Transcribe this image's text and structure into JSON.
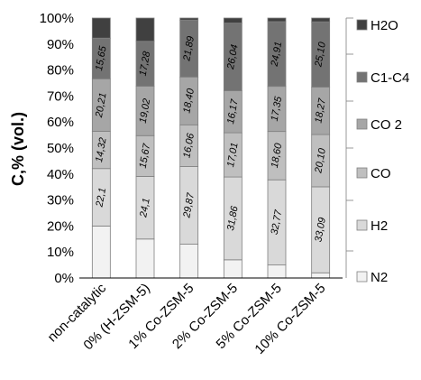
{
  "chart_data": {
    "type": "bar",
    "stacked": true,
    "ylabel": "C,% (vol.)",
    "ylim": [
      0,
      100
    ],
    "y_ticks": [
      "0%",
      "10%",
      "20%",
      "30%",
      "40%",
      "50%",
      "60%",
      "70%",
      "80%",
      "90%",
      "100%"
    ],
    "grid": false,
    "legend_position": "right",
    "categories": [
      "non-catalytic",
      "0% (H-ZSM-5)",
      "1% Co-ZSM-5",
      "2% Co-ZSM-5",
      "5% Co-ZSM-5",
      "10% Co-ZSM-5"
    ],
    "series": [
      {
        "name": "N2",
        "color": "#f2f2f2",
        "values": [
          20.0,
          15.0,
          13.0,
          7.0,
          5.0,
          2.0
        ]
      },
      {
        "name": "H2",
        "color": "#d9d9d9",
        "values": [
          22.1,
          24.1,
          29.87,
          31.86,
          32.77,
          33.09
        ],
        "labels": [
          "22,1",
          "24,1",
          "29,87",
          "31,86",
          "32,77",
          "33,09"
        ]
      },
      {
        "name": "CO",
        "color": "#bfbfbf",
        "values": [
          14.32,
          15.67,
          16.06,
          17.01,
          18.6,
          20.1
        ],
        "labels": [
          "14,32",
          "15,67",
          "16,06",
          "17,01",
          "18,60",
          "20,10"
        ]
      },
      {
        "name": "CO 2",
        "color": "#a6a6a6",
        "values": [
          20.21,
          19.02,
          18.4,
          16.17,
          17.35,
          18.27
        ],
        "labels": [
          "20,21",
          "19,02",
          "18,40",
          "16,17",
          "17,35",
          "18,27"
        ]
      },
      {
        "name": "C1-C4",
        "color": "#737373",
        "values": [
          15.65,
          17.28,
          21.89,
          26.04,
          24.91,
          25.1
        ],
        "labels": [
          "15,65",
          "17,28",
          "21,89",
          "26,04",
          "24,91",
          "25,10"
        ]
      },
      {
        "name": "H2O",
        "color": "#404040",
        "values": [
          7.72,
          8.93,
          0.78,
          1.92,
          1.37,
          1.44
        ]
      }
    ]
  }
}
